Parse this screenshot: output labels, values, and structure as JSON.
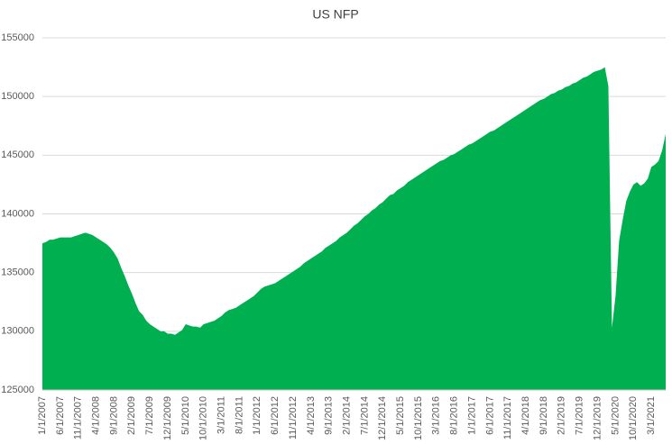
{
  "chart_data": {
    "type": "area",
    "title": "US NFP",
    "color": "#00b050",
    "grid": true,
    "ylim": [
      125000,
      155000
    ],
    "yticks": [
      125000,
      130000,
      135000,
      140000,
      145000,
      150000,
      155000
    ],
    "categories": [
      "1/1/2007",
      null,
      null,
      null,
      null,
      "6/1/2007",
      null,
      null,
      null,
      null,
      "11/1/2007",
      null,
      null,
      null,
      null,
      "4/1/2008",
      null,
      null,
      null,
      null,
      "9/1/2008",
      null,
      null,
      null,
      null,
      "2/1/2009",
      null,
      null,
      null,
      null,
      "7/1/2009",
      null,
      null,
      null,
      null,
      "12/1/2009",
      null,
      null,
      null,
      null,
      "5/1/2010",
      null,
      null,
      null,
      null,
      "10/1/2010",
      null,
      null,
      null,
      null,
      "3/1/2011",
      null,
      null,
      null,
      null,
      "8/1/2011",
      null,
      null,
      null,
      null,
      "1/1/2012",
      null,
      null,
      null,
      null,
      "6/1/2012",
      null,
      null,
      null,
      null,
      "11/1/2012",
      null,
      null,
      null,
      null,
      "4/1/2013",
      null,
      null,
      null,
      null,
      "9/1/2013",
      null,
      null,
      null,
      null,
      "2/1/2014",
      null,
      null,
      null,
      null,
      "7/1/2014",
      null,
      null,
      null,
      null,
      "12/1/2014",
      null,
      null,
      null,
      null,
      "5/1/2015",
      null,
      null,
      null,
      null,
      "10/1/2015",
      null,
      null,
      null,
      null,
      "3/1/2016",
      null,
      null,
      null,
      null,
      "8/1/2016",
      null,
      null,
      null,
      null,
      "1/1/2017",
      null,
      null,
      null,
      null,
      "6/1/2017",
      null,
      null,
      null,
      null,
      "11/1/2017",
      null,
      null,
      null,
      null,
      "4/1/2018",
      null,
      null,
      null,
      null,
      "9/1/2018",
      null,
      null,
      null,
      null,
      "2/1/2019",
      null,
      null,
      null,
      null,
      "7/1/2019",
      null,
      null,
      null,
      null,
      "12/1/2019",
      null,
      null,
      null,
      null,
      "5/1/2020",
      null,
      null,
      null,
      null,
      "10/1/2020",
      null,
      null,
      null,
      null,
      "3/1/2021",
      null,
      null,
      null,
      null
    ],
    "values": [
      137500,
      137600,
      137800,
      137800,
      137900,
      138000,
      138000,
      138000,
      138000,
      138100,
      138200,
      138300,
      138400,
      138300,
      138200,
      138000,
      137800,
      137600,
      137400,
      137100,
      136700,
      136200,
      135400,
      134700,
      133900,
      133200,
      132400,
      131700,
      131400,
      130900,
      130600,
      130400,
      130200,
      130000,
      130000,
      129800,
      129800,
      129700,
      129900,
      130100,
      130600,
      130500,
      130400,
      130400,
      130300,
      130600,
      130700,
      130800,
      130900,
      131100,
      131300,
      131600,
      131800,
      131900,
      132000,
      132200,
      132400,
      132600,
      132800,
      133000,
      133300,
      133600,
      133800,
      133900,
      134000,
      134100,
      134300,
      134500,
      134700,
      134900,
      135100,
      135300,
      135500,
      135800,
      136000,
      136200,
      136400,
      136600,
      136800,
      137100,
      137300,
      137500,
      137700,
      138000,
      138200,
      138400,
      138700,
      139000,
      139200,
      139500,
      139800,
      140000,
      140300,
      140500,
      140800,
      141000,
      141300,
      141600,
      141700,
      142000,
      142200,
      142400,
      142700,
      142900,
      143100,
      143300,
      143500,
      143700,
      143900,
      144100,
      144300,
      144500,
      144600,
      144800,
      145000,
      145100,
      145300,
      145500,
      145700,
      145900,
      146000,
      146200,
      146400,
      146600,
      146800,
      147000,
      147100,
      147300,
      147500,
      147700,
      147900,
      148100,
      148300,
      148500,
      148700,
      148900,
      149100,
      149300,
      149500,
      149700,
      149800,
      150000,
      150200,
      150300,
      150500,
      150600,
      150800,
      150900,
      151100,
      151200,
      151400,
      151600,
      151700,
      151900,
      152100,
      152200,
      152300,
      152500,
      150900,
      130300,
      133000,
      137700,
      139500,
      141100,
      141900,
      142500,
      142700,
      142400,
      142600,
      143000,
      144000,
      144200,
      144500,
      145400,
      146800
    ]
  }
}
